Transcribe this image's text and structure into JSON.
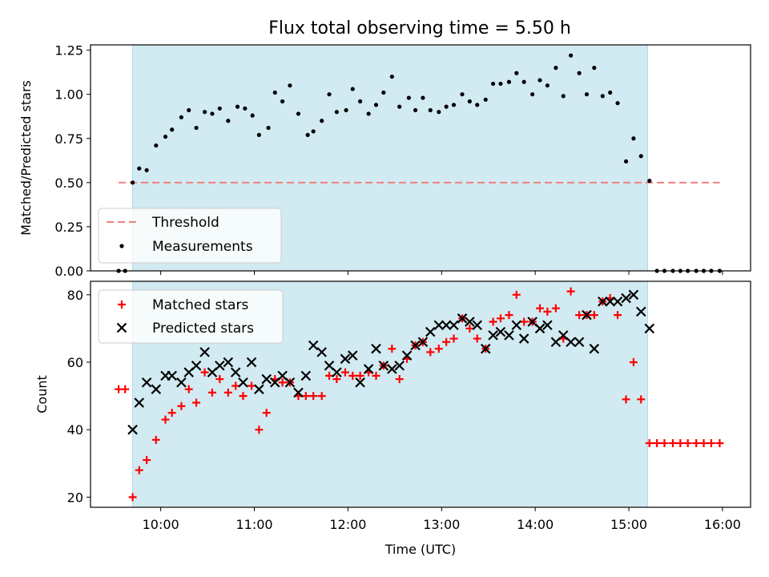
{
  "figure": {
    "title": "Flux total observing time = 5.50 h",
    "background": "#ffffff",
    "shade_color": "#add8e6",
    "threshold_color": "#f08080"
  },
  "chart_data": [
    {
      "type": "scatter",
      "ylabel": "Matched/Predicted stars",
      "xlim": [
        9.25,
        16.3
      ],
      "ylim": [
        0,
        1.28
      ],
      "yticks": [
        0.0,
        0.25,
        0.5,
        0.75,
        1.0,
        1.25
      ],
      "ytick_labels": [
        "0.00",
        "0.25",
        "0.50",
        "0.75",
        "1.00",
        "1.25"
      ],
      "shaded_span": [
        9.7,
        15.2
      ],
      "threshold": {
        "name": "Threshold",
        "value": 0.5,
        "x_range": [
          9.55,
          15.97
        ]
      },
      "series": [
        {
          "name": "Measurements",
          "color": "#000000",
          "marker": "dot",
          "x": [
            9.55,
            9.62,
            9.7,
            9.77,
            9.85,
            9.95,
            10.05,
            10.12,
            10.22,
            10.3,
            10.38,
            10.47,
            10.55,
            10.63,
            10.72,
            10.82,
            10.9,
            10.98,
            11.05,
            11.15,
            11.22,
            11.3,
            11.38,
            11.47,
            11.57,
            11.63,
            11.72,
            11.8,
            11.88,
            11.98,
            12.05,
            12.13,
            12.22,
            12.3,
            12.38,
            12.47,
            12.55,
            12.65,
            12.72,
            12.8,
            12.88,
            12.97,
            13.05,
            13.13,
            13.22,
            13.3,
            13.38,
            13.47,
            13.55,
            13.63,
            13.72,
            13.8,
            13.88,
            13.97,
            14.05,
            14.13,
            14.22,
            14.3,
            14.38,
            14.47,
            14.55,
            14.63,
            14.72,
            14.8,
            14.88,
            14.97,
            15.05,
            15.13,
            15.22,
            15.3,
            15.38,
            15.47,
            15.55,
            15.63,
            15.72,
            15.8,
            15.88,
            15.97
          ],
          "y": [
            0.0,
            0.0,
            0.5,
            0.58,
            0.57,
            0.71,
            0.76,
            0.8,
            0.87,
            0.91,
            0.81,
            0.9,
            0.89,
            0.92,
            0.85,
            0.93,
            0.92,
            0.88,
            0.77,
            0.81,
            1.01,
            0.96,
            1.05,
            0.89,
            0.77,
            0.79,
            0.85,
            1.0,
            0.9,
            0.91,
            1.03,
            0.96,
            0.89,
            0.94,
            1.01,
            1.1,
            0.93,
            0.98,
            0.91,
            0.98,
            0.91,
            0.9,
            0.93,
            0.94,
            1.0,
            0.96,
            0.94,
            0.97,
            1.06,
            1.06,
            1.07,
            1.12,
            1.07,
            1.0,
            1.08,
            1.05,
            1.15,
            0.99,
            1.22,
            1.12,
            1.0,
            1.15,
            0.99,
            1.01,
            0.95,
            0.62,
            0.75,
            0.65,
            0.51,
            0.0,
            0.0,
            0.0,
            0.0,
            0.0,
            0.0,
            0.0,
            0.0,
            0.0
          ]
        }
      ]
    },
    {
      "type": "scatter",
      "xlabel": "Time (UTC)",
      "ylabel": "Count",
      "xlim": [
        9.25,
        16.3
      ],
      "ylim": [
        17,
        84
      ],
      "xticks": [
        10,
        11,
        12,
        13,
        14,
        15,
        16
      ],
      "xtick_labels": [
        "10:00",
        "11:00",
        "12:00",
        "13:00",
        "14:00",
        "15:00",
        "16:00"
      ],
      "yticks": [
        20,
        40,
        60,
        80
      ],
      "ytick_labels": [
        "20",
        "40",
        "60",
        "80"
      ],
      "shaded_span": [
        9.7,
        15.2
      ],
      "series": [
        {
          "name": "Matched stars",
          "color": "#ff0000",
          "marker": "plus",
          "x": [
            9.55,
            9.62,
            9.7,
            9.77,
            9.85,
            9.95,
            10.05,
            10.12,
            10.22,
            10.3,
            10.38,
            10.47,
            10.55,
            10.63,
            10.72,
            10.8,
            10.88,
            10.97,
            11.05,
            11.13,
            11.22,
            11.3,
            11.38,
            11.47,
            11.55,
            11.63,
            11.72,
            11.8,
            11.88,
            11.97,
            12.05,
            12.13,
            12.22,
            12.3,
            12.38,
            12.47,
            12.55,
            12.63,
            12.72,
            12.8,
            12.88,
            12.97,
            13.05,
            13.13,
            13.22,
            13.3,
            13.38,
            13.47,
            13.55,
            13.63,
            13.72,
            13.8,
            13.88,
            13.97,
            14.05,
            14.13,
            14.22,
            14.3,
            14.38,
            14.47,
            14.55,
            14.63,
            14.72,
            14.8,
            14.88,
            14.97,
            15.05,
            15.13,
            15.22,
            15.3,
            15.38,
            15.47,
            15.55,
            15.63,
            15.72,
            15.8,
            15.88,
            15.97
          ],
          "y": [
            52,
            52,
            20,
            28,
            31,
            37,
            43,
            45,
            47,
            52,
            48,
            57,
            51,
            55,
            51,
            53,
            50,
            53,
            40,
            45,
            55,
            54,
            54,
            50,
            50,
            50,
            50,
            56,
            55,
            57,
            56,
            56,
            57,
            56,
            59,
            64,
            55,
            61,
            65,
            66,
            63,
            64,
            66,
            67,
            73,
            70,
            67,
            64,
            72,
            73,
            74,
            80,
            72,
            72,
            76,
            75,
            76,
            67,
            81,
            74,
            74,
            74,
            78,
            79,
            74,
            49,
            60,
            49,
            36,
            36,
            36,
            36,
            36,
            36,
            36,
            36,
            36,
            36
          ]
        },
        {
          "name": "Predicted stars",
          "color": "#000000",
          "marker": "x",
          "x": [
            9.7,
            9.77,
            9.85,
            9.95,
            10.05,
            10.12,
            10.22,
            10.3,
            10.38,
            10.47,
            10.55,
            10.63,
            10.72,
            10.8,
            10.88,
            10.97,
            11.05,
            11.13,
            11.22,
            11.3,
            11.38,
            11.47,
            11.55,
            11.63,
            11.72,
            11.8,
            11.88,
            11.97,
            12.05,
            12.13,
            12.22,
            12.3,
            12.38,
            12.47,
            12.55,
            12.63,
            12.72,
            12.8,
            12.88,
            12.97,
            13.05,
            13.13,
            13.22,
            13.3,
            13.38,
            13.47,
            13.55,
            13.63,
            13.72,
            13.8,
            13.88,
            13.97,
            14.05,
            14.13,
            14.22,
            14.3,
            14.38,
            14.47,
            14.55,
            14.63,
            14.72,
            14.8,
            14.88,
            14.97,
            15.05,
            15.13,
            15.22
          ],
          "y": [
            40,
            48,
            54,
            52,
            56,
            56,
            54,
            57,
            59,
            63,
            57,
            59,
            60,
            57,
            54,
            60,
            52,
            55,
            54,
            56,
            54,
            51,
            56,
            65,
            63,
            59,
            57,
            61,
            62,
            54,
            58,
            64,
            59,
            58,
            59,
            62,
            65,
            66,
            69,
            71,
            71,
            71,
            73,
            72,
            71,
            64,
            68,
            69,
            68,
            71,
            67,
            72,
            70,
            71,
            66,
            68,
            66,
            66,
            74,
            64,
            78,
            78,
            78,
            79,
            80,
            75,
            70
          ]
        }
      ]
    }
  ]
}
